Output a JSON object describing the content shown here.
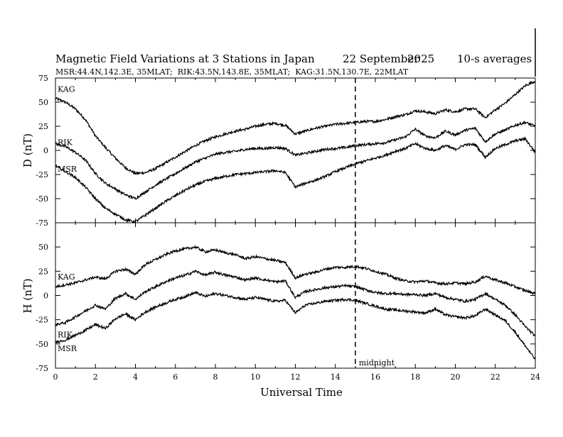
{
  "header": {
    "title": "Magnetic Field Variations at 3 Stations in Japan",
    "date_day": "22 September",
    "date_year": "2025",
    "averaging": "10-s averages",
    "stations_line": "MSR:44.4N,142.3E, 35MLAT;  RIK:43.5N,143.8E, 35MLAT;  KAG:31.5N,130.7E, 22MLAT"
  },
  "chart_data": [
    {
      "type": "line",
      "panel": "D",
      "ylabel": "D (nT)",
      "ylim": [
        -75,
        75
      ],
      "yticks": [
        75,
        50,
        25,
        0,
        -25,
        -50,
        -75
      ],
      "xlim": [
        0,
        24
      ],
      "series": [
        {
          "name": "KAG",
          "x": [
            0,
            0.5,
            1,
            1.5,
            2,
            2.5,
            3,
            3.5,
            4,
            4.5,
            5,
            5.5,
            6,
            6.5,
            7,
            7.5,
            8,
            8.5,
            9,
            9.5,
            10,
            10.5,
            11,
            11.5,
            12,
            12.5,
            13,
            13.5,
            14,
            14.5,
            15,
            15.5,
            16,
            16.5,
            17,
            17.5,
            18,
            18.5,
            19,
            19.5,
            20,
            20.5,
            21,
            21.5,
            22,
            22.5,
            23,
            23.5,
            24
          ],
          "values": [
            54,
            50,
            43,
            32,
            15,
            3,
            -8,
            -18,
            -24,
            -23,
            -19,
            -13,
            -7,
            -1,
            5,
            10,
            14,
            17,
            20,
            22,
            25,
            27,
            28,
            26,
            17,
            20,
            23,
            25,
            27,
            28,
            29,
            30,
            30,
            32,
            35,
            37,
            41,
            40,
            38,
            42,
            40,
            43,
            43,
            34,
            42,
            49,
            58,
            67,
            72
          ]
        },
        {
          "name": "RIK",
          "x": [
            0,
            0.5,
            1,
            1.5,
            2,
            2.5,
            3,
            3.5,
            4,
            4.5,
            5,
            5.5,
            6,
            6.5,
            7,
            7.5,
            8,
            8.5,
            9,
            9.5,
            10,
            10.5,
            11,
            11.5,
            12,
            12.5,
            13,
            13.5,
            14,
            14.5,
            15,
            15.5,
            16,
            16.5,
            17,
            17.5,
            18,
            18.5,
            19,
            19.5,
            20,
            20.5,
            21,
            21.5,
            22,
            22.5,
            23,
            23.5,
            24
          ],
          "values": [
            7,
            4,
            -2,
            -10,
            -24,
            -34,
            -40,
            -46,
            -50,
            -43,
            -36,
            -30,
            -24,
            -18,
            -12,
            -8,
            -4,
            -2,
            -1,
            1,
            2,
            2,
            3,
            2,
            -5,
            -3,
            -1,
            1,
            2,
            3,
            5,
            6,
            7,
            8,
            11,
            14,
            22,
            15,
            13,
            20,
            16,
            21,
            23,
            9,
            17,
            21,
            26,
            29,
            25
          ]
        },
        {
          "name": "MSR",
          "x": [
            0,
            0.5,
            1,
            1.5,
            2,
            2.5,
            3,
            3.5,
            4,
            4.5,
            5,
            5.5,
            6,
            6.5,
            7,
            7.5,
            8,
            8.5,
            9,
            9.5,
            10,
            10.5,
            11,
            11.5,
            12,
            12.5,
            13,
            13.5,
            14,
            14.5,
            15,
            15.5,
            16,
            16.5,
            17,
            17.5,
            18,
            18.5,
            19,
            19.5,
            20,
            20.5,
            21,
            21.5,
            22,
            22.5,
            23,
            23.5,
            24
          ],
          "values": [
            -16,
            -22,
            -28,
            -38,
            -50,
            -60,
            -66,
            -72,
            -74,
            -67,
            -60,
            -53,
            -47,
            -41,
            -36,
            -32,
            -29,
            -27,
            -25,
            -24,
            -23,
            -22,
            -21,
            -23,
            -38,
            -34,
            -31,
            -27,
            -22,
            -18,
            -14,
            -11,
            -8,
            -5,
            -1,
            2,
            7,
            2,
            0,
            5,
            1,
            6,
            6,
            -7,
            2,
            6,
            10,
            12,
            -2
          ]
        }
      ]
    },
    {
      "type": "line",
      "panel": "H",
      "ylabel": "H (nT)",
      "xlabel": "Universal Time",
      "ylim": [
        -75,
        75
      ],
      "yticks": [
        50,
        25,
        0,
        -25,
        -50,
        -75
      ],
      "xlim": [
        0,
        24
      ],
      "xticks": [
        0,
        2,
        4,
        6,
        8,
        10,
        12,
        14,
        16,
        18,
        20,
        22,
        24
      ],
      "series": [
        {
          "name": "KAG",
          "x": [
            0,
            0.5,
            1,
            1.5,
            2,
            2.5,
            3,
            3.5,
            4,
            4.5,
            5,
            5.5,
            6,
            6.5,
            7,
            7.5,
            8,
            8.5,
            9,
            9.5,
            10,
            10.5,
            11,
            11.5,
            12,
            12.5,
            13,
            13.5,
            14,
            14.5,
            15,
            15.5,
            16,
            16.5,
            17,
            17.5,
            18,
            18.5,
            19,
            19.5,
            20,
            20.5,
            21,
            21.5,
            22,
            22.5,
            23,
            23.5,
            24
          ],
          "values": [
            9,
            11,
            13,
            16,
            19,
            17,
            25,
            27,
            22,
            32,
            37,
            42,
            46,
            48,
            50,
            45,
            47,
            44,
            42,
            38,
            40,
            38,
            36,
            34,
            18,
            22,
            24,
            27,
            29,
            29,
            30,
            28,
            25,
            22,
            18,
            15,
            14,
            15,
            13,
            12,
            13,
            12,
            14,
            20,
            16,
            13,
            9,
            5,
            2
          ]
        },
        {
          "name": "RIK",
          "x": [
            0,
            0.5,
            1,
            1.5,
            2,
            2.5,
            3,
            3.5,
            4,
            4.5,
            5,
            5.5,
            6,
            6.5,
            7,
            7.5,
            8,
            8.5,
            9,
            9.5,
            10,
            10.5,
            11,
            11.5,
            12,
            12.5,
            13,
            13.5,
            14,
            14.5,
            15,
            15.5,
            16,
            16.5,
            17,
            17.5,
            18,
            18.5,
            19,
            19.5,
            20,
            20.5,
            21,
            21.5,
            22,
            22.5,
            23,
            23.5,
            24
          ],
          "values": [
            -30,
            -28,
            -22,
            -16,
            -10,
            -14,
            -3,
            2,
            -4,
            4,
            9,
            14,
            18,
            21,
            25,
            21,
            24,
            21,
            19,
            16,
            18,
            16,
            14,
            15,
            -2,
            4,
            6,
            8,
            9,
            10,
            9,
            6,
            3,
            2,
            2,
            1,
            1,
            0,
            2,
            -2,
            -4,
            -6,
            -4,
            2,
            -4,
            -10,
            -20,
            -32,
            -42
          ]
        },
        {
          "name": "MSR",
          "x": [
            0,
            0.5,
            1,
            1.5,
            2,
            2.5,
            3,
            3.5,
            4,
            4.5,
            5,
            5.5,
            6,
            6.5,
            7,
            7.5,
            8,
            8.5,
            9,
            9.5,
            10,
            10.5,
            11,
            11.5,
            12,
            12.5,
            13,
            13.5,
            14,
            14.5,
            15,
            15.5,
            16,
            16.5,
            17,
            17.5,
            18,
            18.5,
            19,
            19.5,
            20,
            20.5,
            21,
            21.5,
            22,
            22.5,
            23,
            23.5,
            24
          ],
          "values": [
            -48,
            -46,
            -41,
            -36,
            -30,
            -34,
            -24,
            -19,
            -25,
            -17,
            -12,
            -8,
            -4,
            -1,
            3,
            -1,
            2,
            0,
            -2,
            -4,
            -2,
            -4,
            -6,
            -5,
            -18,
            -10,
            -8,
            -6,
            -5,
            -4,
            -5,
            -8,
            -11,
            -14,
            -15,
            -16,
            -17,
            -18,
            -14,
            -20,
            -22,
            -23,
            -21,
            -14,
            -20,
            -26,
            -38,
            -52,
            -66
          ]
        }
      ]
    }
  ],
  "midnight_marker": {
    "x": 15,
    "label": "midnight"
  }
}
